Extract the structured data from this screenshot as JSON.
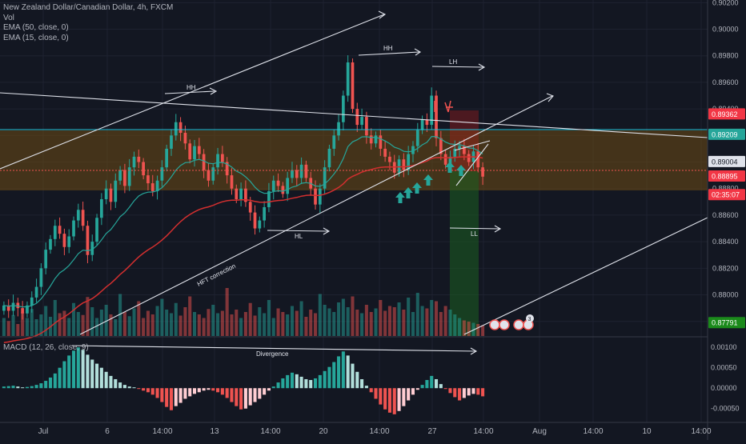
{
  "header": {
    "title": "New Zealand Dollar/Canadian Dollar, 4h, FXCM",
    "vol": "Vol",
    "ema50": "EMA (50, close, 0)",
    "ema15": "EMA (15, close, 0)"
  },
  "macd": {
    "label": "MACD (12, 26, close, 9)"
  },
  "colors": {
    "background": "#131722",
    "up": "#26a69a",
    "down": "#ef5350",
    "ema50": "#d32f2f",
    "ema15": "#26a69a",
    "zone": "#7a4f12",
    "resistance_line": "#26c6da",
    "text": "#b2b5be"
  },
  "chart_data": [
    {
      "type": "candlestick",
      "title": "New Zealand Dollar/Canadian Dollar, 4h, FXCM",
      "y_axis": {
        "range": [
          0.8769,
          0.9022
        ],
        "ticks": [
          "0.90200",
          "0.90000",
          "0.89800",
          "0.89600",
          "0.89400",
          "0.89200",
          "0.89000",
          "0.88800",
          "0.88600",
          "0.88400",
          "0.88200",
          "0.88000",
          "0.87800"
        ]
      },
      "x_axis": {
        "ticks": [
          "Jul",
          "6",
          "14:00",
          "13",
          "14:00",
          "20",
          "14:00",
          "27",
          "14:00",
          "Aug",
          "14:00",
          "10",
          "14:00"
        ]
      },
      "price_labels": [
        {
          "value": 0.89362,
          "text": "0.89362",
          "color": "#f23645"
        },
        {
          "value": 0.89209,
          "text": "0.89209",
          "color": "#26a69a"
        },
        {
          "value": 0.89004,
          "text": "0.89004",
          "color": "#131722"
        },
        {
          "value": 0.88895,
          "text": "0.88895",
          "color": "#f23645"
        },
        {
          "value": 0.88755,
          "text": "02:35:07",
          "color": "#f23645"
        },
        {
          "value": 0.87791,
          "text": "0.87791",
          "color": "#1b8a1b"
        }
      ],
      "closes": [
        0.8792,
        0.8788,
        0.8794,
        0.879,
        0.8786,
        0.8792,
        0.8798,
        0.8806,
        0.882,
        0.8834,
        0.8842,
        0.8852,
        0.8846,
        0.8836,
        0.8844,
        0.8856,
        0.8864,
        0.8852,
        0.883,
        0.884,
        0.8858,
        0.8872,
        0.888,
        0.887,
        0.8886,
        0.8894,
        0.8882,
        0.8896,
        0.8904,
        0.89,
        0.889,
        0.8884,
        0.8878,
        0.8886,
        0.8896,
        0.891,
        0.892,
        0.893,
        0.8922,
        0.8914,
        0.8902,
        0.8912,
        0.8906,
        0.8894,
        0.8886,
        0.8896,
        0.8906,
        0.89,
        0.889,
        0.888,
        0.8872,
        0.888,
        0.887,
        0.8862,
        0.885,
        0.8856,
        0.8866,
        0.8878,
        0.8886,
        0.8882,
        0.8876,
        0.8888,
        0.8894,
        0.8888,
        0.8898,
        0.8888,
        0.888,
        0.8868,
        0.888,
        0.8896,
        0.891,
        0.892,
        0.893,
        0.895,
        0.8975,
        0.894,
        0.8928,
        0.8934,
        0.892,
        0.8914,
        0.892,
        0.891,
        0.8904,
        0.89,
        0.8892,
        0.8902,
        0.8894,
        0.8906,
        0.8912,
        0.8924,
        0.8932,
        0.8928,
        0.895,
        0.8918,
        0.8906,
        0.8898,
        0.8904,
        0.891,
        0.8912,
        0.8906,
        0.89,
        0.8908,
        0.8896,
        0.8889
      ],
      "volume": {
        "series": "Vol",
        "relative_heights": [
          0.3,
          0.25,
          0.35,
          0.2,
          0.4,
          0.3,
          0.45,
          0.28,
          0.36,
          0.5,
          0.32,
          0.6,
          0.38,
          0.42,
          0.3,
          0.55,
          0.4,
          0.35,
          0.65,
          0.48,
          0.3,
          0.44,
          0.52,
          0.36,
          0.28,
          0.7,
          0.4,
          0.33,
          0.46,
          0.58,
          0.3,
          0.42,
          0.36,
          0.5,
          0.62,
          0.44,
          0.38,
          0.55,
          0.34,
          0.48,
          0.66,
          0.4,
          0.36,
          0.3,
          0.45,
          0.52,
          0.38,
          0.42,
          0.8,
          0.36,
          0.44,
          0.3,
          0.4,
          0.55,
          0.34,
          0.48,
          0.38,
          0.6,
          0.3,
          0.46,
          0.4,
          0.36,
          0.5,
          0.42,
          0.58,
          0.32,
          0.44,
          0.38,
          0.7,
          0.52,
          0.46,
          0.4,
          0.56,
          0.62,
          0.48,
          0.66,
          0.44,
          0.38,
          0.52,
          0.4,
          0.46,
          0.6,
          0.42,
          0.5,
          0.48,
          0.56,
          0.44,
          0.64,
          0.4,
          0.72,
          0.5,
          0.46,
          0.6,
          0.58,
          0.4,
          0.5,
          0.44,
          0.36,
          0.3,
          0.26,
          0.24,
          0.22,
          0.2,
          0.18
        ]
      }
    },
    {
      "type": "bar",
      "title": "MACD (12, 26, close, 9)",
      "y_axis": {
        "range": [
          -0.0008,
          0.0012
        ],
        "ticks": [
          "0.00100",
          "0.00050",
          "0.00000",
          "-0.00050"
        ]
      },
      "values": [
        4e-05,
        5e-05,
        6e-05,
        4e-05,
        2e-05,
        3e-05,
        5e-05,
        8e-05,
        0.00012,
        0.00018,
        0.00026,
        0.00036,
        0.0005,
        0.00066,
        0.0008,
        0.00092,
        0.001,
        0.00094,
        0.00082,
        0.0007,
        0.0006,
        0.0005,
        0.0004,
        0.0003,
        0.00022,
        0.00014,
        8e-05,
        4e-05,
        2e-05,
        -2e-05,
        -6e-05,
        -0.0001,
        -0.00016,
        -0.00024,
        -0.00034,
        -0.00046,
        -0.00054,
        -0.00044,
        -0.00036,
        -0.00026,
        -0.0002,
        -0.00014,
        -0.0001,
        -6e-05,
        -4e-05,
        -6e-05,
        -0.0001,
        -0.00016,
        -0.00024,
        -0.00034,
        -0.00044,
        -0.00052,
        -0.0005,
        -0.00042,
        -0.00034,
        -0.00026,
        -0.00016,
        -6e-05,
        4e-05,
        0.00014,
        0.00024,
        0.00032,
        0.00038,
        0.00034,
        0.00028,
        0.00022,
        0.0002,
        0.00024,
        0.00032,
        0.00042,
        0.00052,
        0.00064,
        0.00078,
        0.0009,
        0.0008,
        0.0006,
        0.0004,
        0.00022,
        6e-05,
        -0.0001,
        -0.00026,
        -0.0004,
        -0.00052,
        -0.0006,
        -0.00064,
        -0.00056,
        -0.00044,
        -0.0003,
        -0.00016,
        -4e-05,
        8e-05,
        0.0002,
        0.0003,
        0.00022,
        0.0001,
        -2e-05,
        -0.00012,
        -0.00022,
        -0.0003,
        -0.00024,
        -0.00018,
        -0.00014,
        -0.00016,
        -0.0002
      ]
    }
  ],
  "annotations": {
    "hh1": "HH",
    "hh2": "HH",
    "lh": "LH",
    "hl": "HL",
    "ll": "LL",
    "hft": "HFT correction",
    "divergence": "Divergence"
  },
  "events_badge": "3"
}
